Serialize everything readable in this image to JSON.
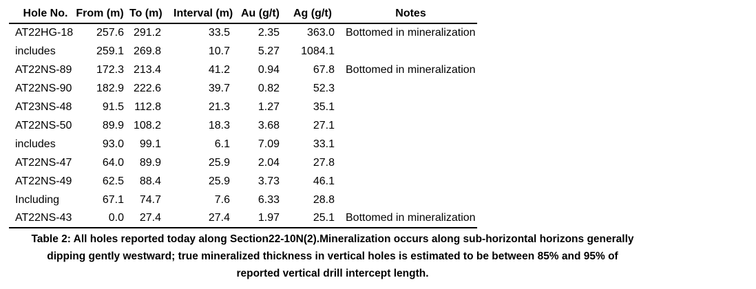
{
  "table": {
    "columns": [
      {
        "key": "hole",
        "label": "Hole No."
      },
      {
        "key": "from",
        "label": "From (m)"
      },
      {
        "key": "to",
        "label": "To (m)"
      },
      {
        "key": "interval",
        "label": "Interval (m)"
      },
      {
        "key": "au",
        "label": "Au (g/t)"
      },
      {
        "key": "ag",
        "label": "Ag (g/t)"
      },
      {
        "key": "notes",
        "label": "Notes"
      }
    ],
    "rows": [
      [
        "AT22HG-18",
        "257.6",
        "291.2",
        "33.5",
        "2.35",
        "363.0",
        "Bottomed in mineralization"
      ],
      [
        "includes",
        "259.1",
        "269.8",
        "10.7",
        "5.27",
        "1084.1",
        ""
      ],
      [
        "AT22NS-89",
        "172.3",
        "213.4",
        "41.2",
        "0.94",
        "67.8",
        "Bottomed in mineralization"
      ],
      [
        "AT22NS-90",
        "182.9",
        "222.6",
        "39.7",
        "0.82",
        "52.3",
        ""
      ],
      [
        "AT23NS-48",
        "91.5",
        "112.8",
        "21.3",
        "1.27",
        "35.1",
        ""
      ],
      [
        "AT22NS-50",
        "89.9",
        "108.2",
        "18.3",
        "3.68",
        "27.1",
        ""
      ],
      [
        "includes",
        "93.0",
        "99.1",
        "6.1",
        "7.09",
        "33.1",
        ""
      ],
      [
        "AT22NS-47",
        "64.0",
        "89.9",
        "25.9",
        "2.04",
        "27.8",
        ""
      ],
      [
        "AT22NS-49",
        "62.5",
        "88.4",
        "25.9",
        "3.73",
        "46.1",
        ""
      ],
      [
        "Including",
        "67.1",
        "74.7",
        "7.6",
        "6.33",
        "28.8",
        ""
      ],
      [
        "AT22NS-43",
        "0.0",
        "27.4",
        "27.4",
        "1.97",
        "25.1",
        "Bottomed in mineralization"
      ]
    ]
  },
  "caption": {
    "line1": "Table 2: All holes reported today along Section22-10N(2).Mineralization occurs along sub-horizontal horizons generally",
    "line2": "dipping gently westward; true mineralized thickness in vertical holes is estimated to be between 85% and 95% of",
    "line3": "reported vertical drill intercept length."
  },
  "colors": {
    "text": "#000000",
    "background": "#ffffff",
    "border": "#000000"
  }
}
